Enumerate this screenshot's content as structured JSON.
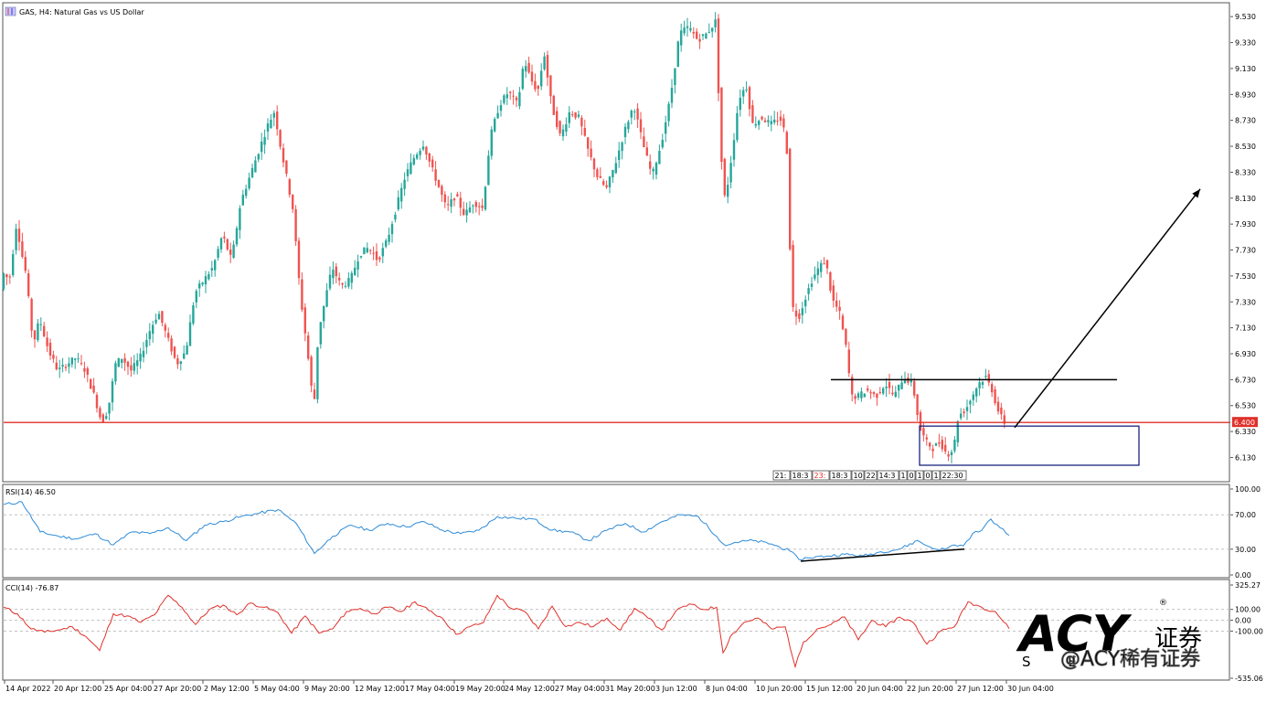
{
  "header": {
    "symbol_label": "GAS, H4:  Natural Gas vs  US Dollar"
  },
  "chart_data": [
    {
      "type": "candlestick",
      "panel": "main",
      "title": "GAS, H4:  Natural Gas vs  US Dollar",
      "ylim": [
        5.95,
        9.63
      ],
      "yticks": [
        "9.530",
        "9.330",
        "9.130",
        "8.930",
        "8.730",
        "8.530",
        "8.330",
        "8.130",
        "7.930",
        "7.730",
        "7.530",
        "7.330",
        "7.130",
        "6.930",
        "6.730",
        "6.530",
        "6.330",
        "6.130"
      ],
      "xticks": [
        "14 Apr 2022",
        "20 Apr 12:00",
        "25 Apr 04:00",
        "27 Apr 20:00",
        "2 May 12:00",
        "5 May 04:00",
        "9 May 20:00",
        "12 May 12:00",
        "17 May 04:00",
        "19 May 20:00",
        "24 May 12:00",
        "27 May 04:00",
        "31 May 20:00",
        "3 Jun 12:00",
        "8 Jun 04:00",
        "10 Jun 20:00",
        "15 Jun 12:00",
        "20 Jun 04:00",
        "22 Jun 20:00",
        "27 Jun 12:00",
        "30 Jun 04:00"
      ],
      "price_path": [
        [
          0,
          7.33
        ],
        [
          5,
          7.55
        ],
        [
          12,
          7.5
        ],
        [
          20,
          7.95
        ],
        [
          24,
          7.75
        ],
        [
          30,
          7.55
        ],
        [
          38,
          7.0
        ],
        [
          45,
          7.2
        ],
        [
          55,
          6.95
        ],
        [
          65,
          6.8
        ],
        [
          75,
          6.85
        ],
        [
          85,
          6.9
        ],
        [
          95,
          6.8
        ],
        [
          105,
          6.6
        ],
        [
          113,
          6.4
        ],
        [
          120,
          6.5
        ],
        [
          128,
          6.85
        ],
        [
          135,
          6.9
        ],
        [
          145,
          6.8
        ],
        [
          155,
          6.9
        ],
        [
          165,
          7.1
        ],
        [
          175,
          7.25
        ],
        [
          185,
          7.05
        ],
        [
          195,
          6.85
        ],
        [
          205,
          6.95
        ],
        [
          215,
          7.4
        ],
        [
          225,
          7.5
        ],
        [
          235,
          7.6
        ],
        [
          245,
          7.85
        ],
        [
          255,
          7.65
        ],
        [
          265,
          8.1
        ],
        [
          275,
          8.3
        ],
        [
          285,
          8.5
        ],
        [
          295,
          8.7
        ],
        [
          302,
          8.8
        ],
        [
          308,
          8.55
        ],
        [
          315,
          8.3
        ],
        [
          322,
          8.05
        ],
        [
          330,
          7.4
        ],
        [
          338,
          6.95
        ],
        [
          345,
          6.5
        ],
        [
          350,
          7.1
        ],
        [
          356,
          7.3
        ],
        [
          365,
          7.6
        ],
        [
          375,
          7.45
        ],
        [
          385,
          7.5
        ],
        [
          395,
          7.7
        ],
        [
          405,
          7.75
        ],
        [
          415,
          7.65
        ],
        [
          425,
          7.8
        ],
        [
          435,
          8.05
        ],
        [
          445,
          8.3
        ],
        [
          455,
          8.45
        ],
        [
          465,
          8.55
        ],
        [
          472,
          8.4
        ],
        [
          480,
          8.25
        ],
        [
          490,
          8.05
        ],
        [
          500,
          8.15
        ],
        [
          510,
          8.0
        ],
        [
          520,
          8.1
        ],
        [
          530,
          8.05
        ],
        [
          538,
          8.6
        ],
        [
          548,
          8.85
        ],
        [
          558,
          8.95
        ],
        [
          568,
          8.85
        ],
        [
          575,
          9.2
        ],
        [
          582,
          9.05
        ],
        [
          590,
          8.95
        ],
        [
          597,
          9.25
        ],
        [
          605,
          8.85
        ],
        [
          615,
          8.6
        ],
        [
          625,
          8.8
        ],
        [
          635,
          8.75
        ],
        [
          645,
          8.5
        ],
        [
          655,
          8.3
        ],
        [
          665,
          8.2
        ],
        [
          675,
          8.4
        ],
        [
          685,
          8.65
        ],
        [
          695,
          8.85
        ],
        [
          705,
          8.55
        ],
        [
          715,
          8.3
        ],
        [
          725,
          8.55
        ],
        [
          735,
          8.9
        ],
        [
          745,
          9.4
        ],
        [
          755,
          9.45
        ],
        [
          765,
          9.35
        ],
        [
          775,
          9.4
        ],
        [
          785,
          9.5
        ],
        [
          790,
          8.5
        ],
        [
          795,
          8.1
        ],
        [
          803,
          8.5
        ],
        [
          810,
          8.9
        ],
        [
          818,
          9.0
        ],
        [
          825,
          8.7
        ],
        [
          835,
          8.75
        ],
        [
          845,
          8.7
        ],
        [
          855,
          8.75
        ],
        [
          862,
          8.6
        ],
        [
          868,
          7.3
        ],
        [
          875,
          7.2
        ],
        [
          882,
          7.35
        ],
        [
          890,
          7.5
        ],
        [
          898,
          7.6
        ],
        [
          905,
          7.65
        ],
        [
          912,
          7.35
        ],
        [
          920,
          7.25
        ],
        [
          928,
          6.95
        ],
        [
          933,
          6.6
        ],
        [
          940,
          6.6
        ],
        [
          950,
          6.65
        ],
        [
          960,
          6.6
        ],
        [
          970,
          6.7
        ],
        [
          980,
          6.6
        ],
        [
          990,
          6.75
        ],
        [
          1000,
          6.7
        ],
        [
          1008,
          6.35
        ],
        [
          1015,
          6.25
        ],
        [
          1022,
          6.2
        ],
        [
          1030,
          6.25
        ],
        [
          1038,
          6.15
        ],
        [
          1045,
          6.2
        ],
        [
          1050,
          6.45
        ],
        [
          1058,
          6.5
        ],
        [
          1065,
          6.6
        ],
        [
          1072,
          6.7
        ],
        [
          1080,
          6.75
        ],
        [
          1087,
          6.65
        ],
        [
          1093,
          6.5
        ],
        [
          1100,
          6.4
        ]
      ],
      "series": [
        {
          "name": "",
          "values": [
            6.73
          ]
        },
        {
          "name": "",
          "values": [
            6.4
          ]
        }
      ],
      "annotations": {
        "resistance_level": 6.73,
        "support_level": 6.4,
        "current_price_label": "6.400",
        "box": {
          "x_from": 1006,
          "x_to": 1246,
          "y_from": 6.4,
          "y_to": 6.07
        },
        "arrow": {
          "x_from": 1110,
          "y_from": 6.36,
          "x_to": 1313,
          "y_to": 8.2
        }
      },
      "session_labels": [
        "21:",
        "18:3",
        "23:",
        "18:3",
        "10",
        "22",
        "14:3",
        "1",
        "0",
        "1",
        "0",
        "1",
        "22:30"
      ]
    },
    {
      "type": "line",
      "panel": "rsi",
      "title": "RSI(14) 46.50",
      "ylim": [
        0,
        100
      ],
      "yticks": [
        "100.00",
        "70.00",
        "30.00",
        "0.00"
      ],
      "levels": [
        70,
        30
      ],
      "x": [
        0,
        20,
        40,
        60,
        80,
        100,
        120,
        140,
        160,
        180,
        200,
        220,
        240,
        260,
        280,
        300,
        320,
        340,
        360,
        380,
        400,
        420,
        440,
        460,
        480,
        500,
        520,
        540,
        560,
        580,
        600,
        620,
        640,
        660,
        680,
        700,
        720,
        740,
        760,
        780,
        790,
        800,
        820,
        840,
        860,
        870,
        880,
        900,
        920,
        940,
        960,
        980,
        1000,
        1010,
        1020,
        1030,
        1040,
        1050,
        1060,
        1070,
        1080,
        1090,
        1100
      ],
      "values": [
        82,
        85,
        50,
        45,
        42,
        48,
        35,
        50,
        48,
        55,
        40,
        58,
        62,
        68,
        72,
        76,
        60,
        25,
        45,
        58,
        52,
        60,
        56,
        62,
        52,
        48,
        52,
        68,
        66,
        65,
        52,
        50,
        40,
        52,
        60,
        50,
        62,
        70,
        68,
        45,
        34,
        38,
        40,
        36,
        28,
        18,
        20,
        22,
        24,
        22,
        27,
        30,
        40,
        34,
        30,
        30,
        35,
        34,
        48,
        52,
        65,
        55,
        46
      ]
    },
    {
      "type": "line",
      "panel": "cci",
      "title": "CCI(14) -76.87",
      "ylim": [
        -535.06,
        325.27
      ],
      "yticks": [
        "325.27",
        "100.00",
        "0.00",
        "-100.00",
        "-535.06"
      ],
      "levels": [
        100,
        0,
        -100
      ],
      "x": [
        0,
        15,
        30,
        45,
        60,
        75,
        90,
        105,
        120,
        135,
        150,
        165,
        180,
        195,
        210,
        225,
        240,
        255,
        270,
        285,
        300,
        315,
        330,
        345,
        360,
        375,
        390,
        405,
        420,
        435,
        450,
        465,
        480,
        495,
        510,
        525,
        540,
        555,
        570,
        585,
        600,
        615,
        630,
        645,
        660,
        675,
        690,
        705,
        720,
        735,
        750,
        765,
        780,
        787,
        795,
        810,
        825,
        840,
        855,
        866,
        875,
        890,
        905,
        920,
        935,
        950,
        965,
        980,
        995,
        1010,
        1025,
        1040,
        1055,
        1070,
        1085,
        1100
      ],
      "values": [
        120,
        60,
        -80,
        -110,
        -90,
        -60,
        -150,
        -280,
        60,
        40,
        -20,
        50,
        230,
        120,
        -40,
        100,
        140,
        50,
        160,
        120,
        70,
        -120,
        40,
        -120,
        -80,
        80,
        110,
        60,
        120,
        80,
        170,
        90,
        20,
        -130,
        -60,
        -20,
        230,
        110,
        80,
        -80,
        130,
        -60,
        -20,
        -60,
        20,
        -90,
        110,
        20,
        -90,
        80,
        150,
        100,
        120,
        -300,
        -150,
        -20,
        20,
        -80,
        -60,
        -430,
        -200,
        -80,
        -40,
        30,
        -180,
        0,
        -60,
        30,
        -20,
        -220,
        -100,
        -60,
        170,
        120,
        80,
        -77
      ]
    }
  ],
  "panels": {
    "rsi_label": "RSI(14) 46.50",
    "cci_label": "CCI(14) -76.87"
  },
  "watermark": {
    "logo_text": "ACY",
    "cn_text": "证券",
    "sub_letters": "S E",
    "handle": "@ACY稀有证券",
    "registered": "®"
  },
  "colors": {
    "bull": "#26a69a",
    "bear": "#ef5350",
    "support_line": "#e0302a",
    "price_label_bg": "#e0302a",
    "rsi_line": "#2e8bd8",
    "cci_line": "#e0302a",
    "box": "#1a237e",
    "logo": "#1a2a6c"
  }
}
